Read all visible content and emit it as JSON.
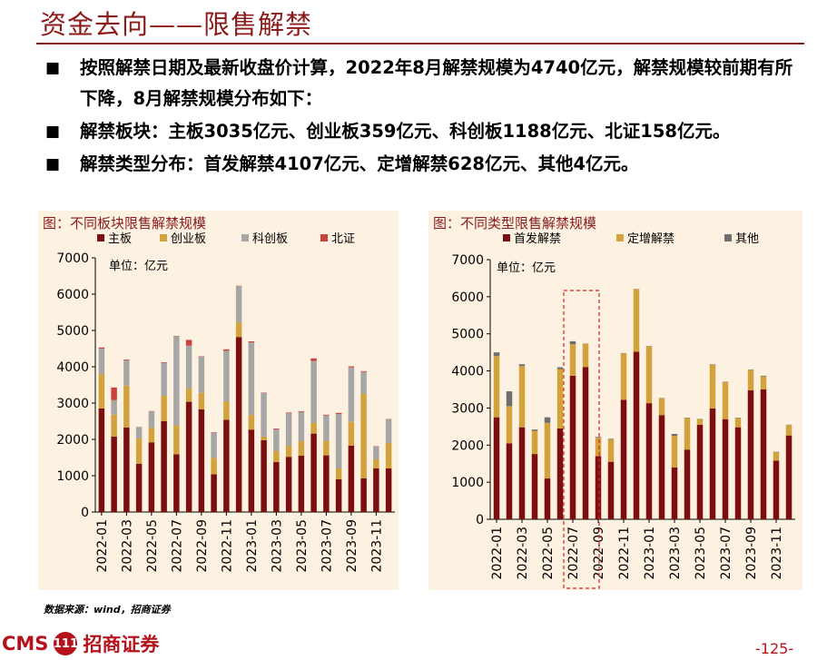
{
  "title": "资金去向——限售解禁",
  "bullets": [
    "按照解禁日期及最新收盘价计算，2022年8月解禁规模为4740亿元，解禁规模较前期有所下降，8月解禁规模分布如下：",
    "解禁板块：主板3035亿元、创业板359亿元、科创板1188亿元、北证158亿元。",
    "解禁类型分布：首发解禁4107亿元、定增解禁628亿元、其他4亿元。"
  ],
  "bullet_marker": "■",
  "source": "数据来源：wind，招商证券",
  "logo": {
    "latin": "CMS",
    "badge": "111",
    "cn": "招商证券"
  },
  "page_number": "-125-",
  "colors": {
    "dark_red": "#7b0f10",
    "gold": "#d2a33c",
    "gray": "#a6a6a6",
    "red": "#c9413a",
    "dark_gray": "#6e6e6e",
    "title_red": "#8b1a1a"
  },
  "chart_data": [
    {
      "type": "bar",
      "stacked": true,
      "title": "图：不同板块限售解禁规模",
      "unit": "单位：亿元",
      "legend_position": "top",
      "x_tick_labels": [
        "2022-01",
        "2022-03",
        "2022-05",
        "2022-07",
        "2022-09",
        "2022-11",
        "2023-01",
        "2023-03",
        "2023-05",
        "2023-07",
        "2023-09",
        "2023-11"
      ],
      "categories": [
        "2022-01",
        "2022-02",
        "2022-03",
        "2022-04",
        "2022-05",
        "2022-06",
        "2022-07",
        "2022-08",
        "2022-09",
        "2022-10",
        "2022-11",
        "2022-12",
        "2023-01",
        "2023-02",
        "2023-03",
        "2023-04",
        "2023-05",
        "2023-06",
        "2023-07",
        "2023-08",
        "2023-09",
        "2023-10",
        "2023-11",
        "2023-12"
      ],
      "ylim": [
        0,
        7000
      ],
      "yticks": [
        0,
        1000,
        2000,
        3000,
        4000,
        5000,
        6000,
        7000
      ],
      "series": [
        {
          "name": "主板",
          "color": "#7b0f10",
          "values": [
            2850,
            2080,
            2330,
            1330,
            1920,
            2500,
            1590,
            3035,
            2830,
            1040,
            2540,
            4820,
            2270,
            1980,
            1380,
            1520,
            1550,
            2160,
            1560,
            900,
            1830,
            930,
            1200,
            1200
          ]
        },
        {
          "name": "创业板",
          "color": "#d2a33c",
          "values": [
            950,
            600,
            1150,
            700,
            400,
            700,
            800,
            359,
            450,
            450,
            500,
            400,
            400,
            100,
            300,
            300,
            400,
            300,
            400,
            300,
            650,
            2330,
            250,
            700
          ]
        },
        {
          "name": "科创板",
          "color": "#a6a6a6",
          "values": [
            700,
            400,
            700,
            300,
            450,
            900,
            2450,
            1188,
            1000,
            700,
            1400,
            1000,
            2000,
            1200,
            600,
            900,
            800,
            1700,
            700,
            1500,
            1500,
            600,
            350,
            650
          ]
        },
        {
          "name": "北证",
          "color": "#c9413a",
          "values": [
            30,
            350,
            20,
            10,
            10,
            20,
            10,
            158,
            10,
            10,
            40,
            10,
            30,
            10,
            20,
            20,
            20,
            70,
            20,
            30,
            30,
            20,
            10,
            10
          ]
        }
      ]
    },
    {
      "type": "bar",
      "stacked": true,
      "title": "图：不同类型限售解禁规模",
      "unit": "单位：亿元",
      "legend_position": "top",
      "highlight_category": "2022-08",
      "x_tick_labels": [
        "2022-01",
        "2022-03",
        "2022-05",
        "2022-07",
        "2022-09",
        "2022-11",
        "2023-01",
        "2023-03",
        "2023-05",
        "2023-07",
        "2023-09",
        "2023-11"
      ],
      "categories": [
        "2022-01",
        "2022-02",
        "2022-03",
        "2022-04",
        "2022-05",
        "2022-06",
        "2022-07",
        "2022-08",
        "2022-09",
        "2022-10",
        "2022-11",
        "2022-12",
        "2023-01",
        "2023-02",
        "2023-03",
        "2023-04",
        "2023-05",
        "2023-06",
        "2023-07",
        "2023-08",
        "2023-09",
        "2023-10",
        "2023-11",
        "2023-12"
      ],
      "ylim": [
        0,
        7000
      ],
      "yticks": [
        0,
        1000,
        2000,
        3000,
        4000,
        5000,
        6000,
        7000
      ],
      "series": [
        {
          "name": "首发解禁",
          "color": "#7b0f10",
          "values": [
            2750,
            2050,
            2480,
            1760,
            1100,
            2450,
            3870,
            4107,
            1700,
            1550,
            3220,
            4520,
            3130,
            2810,
            1400,
            1880,
            2550,
            2990,
            2700,
            2480,
            3480,
            3500,
            1580,
            2260
          ]
        },
        {
          "name": "定增解禁",
          "color": "#d2a33c",
          "values": [
            1650,
            1000,
            1650,
            620,
            1500,
            1600,
            850,
            628,
            500,
            600,
            1250,
            1680,
            1530,
            450,
            850,
            850,
            150,
            1180,
            1000,
            250,
            550,
            350,
            230,
            280
          ]
        },
        {
          "name": "其他",
          "color": "#6e6e6e",
          "values": [
            100,
            400,
            50,
            40,
            150,
            50,
            80,
            4,
            20,
            20,
            10,
            10,
            10,
            10,
            50,
            10,
            10,
            10,
            10,
            10,
            10,
            20,
            10,
            10
          ]
        }
      ]
    }
  ]
}
